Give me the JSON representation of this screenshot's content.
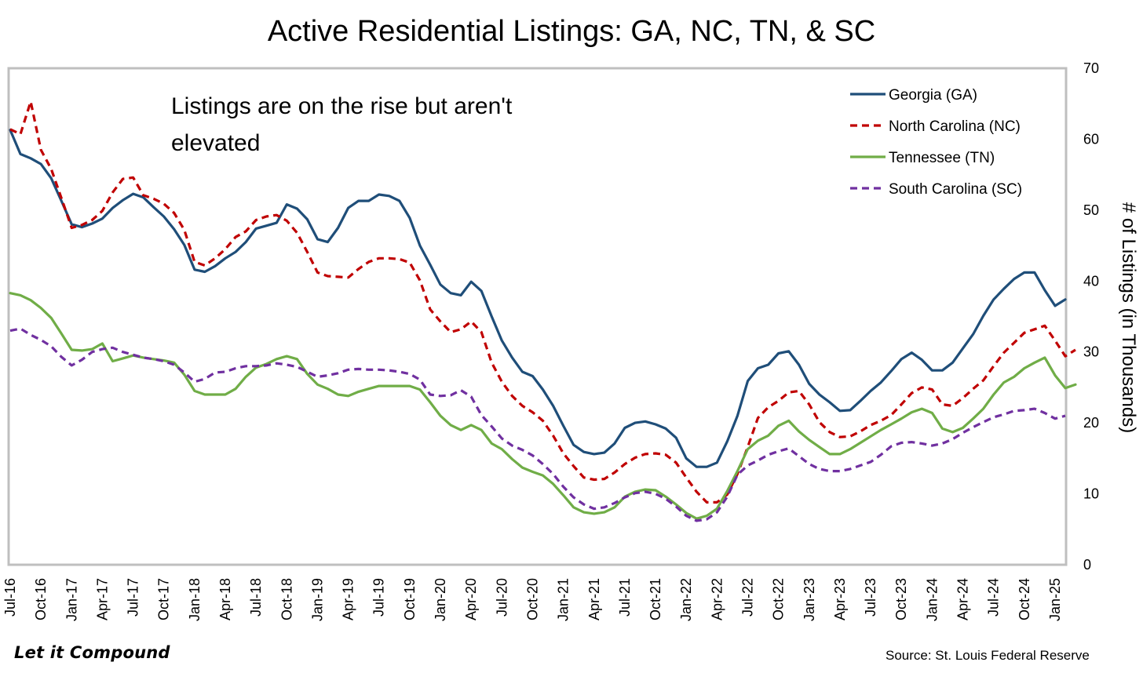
{
  "chart_data": {
    "type": "line",
    "title": "Active Residential Listings: GA, NC, TN, & SC",
    "annotation": "Listings are on the rise but aren't elevated",
    "xlabel": "",
    "ylabel": "# of Listings (in Thousands)",
    "ylim": [
      0,
      70
    ],
    "yticks": [
      0,
      10,
      20,
      30,
      40,
      50,
      60,
      70
    ],
    "grid": false,
    "legend_position": "top-right",
    "x_tick_labels": [
      "Jul-16",
      "Oct-16",
      "Jan-17",
      "Apr-17",
      "Jul-17",
      "Oct-17",
      "Jan-18",
      "Apr-18",
      "Jul-18",
      "Oct-18",
      "Jan-19",
      "Apr-19",
      "Jul-19",
      "Oct-19",
      "Jan-20",
      "Apr-20",
      "Jul-20",
      "Oct-20",
      "Jan-21",
      "Apr-21",
      "Jul-21",
      "Oct-21",
      "Jan-22",
      "Apr-22",
      "Jul-22",
      "Oct-22",
      "Jan-23",
      "Apr-23",
      "Jul-23",
      "Oct-23",
      "Jan-24",
      "Apr-24",
      "Jul-24",
      "Oct-24",
      "Jan-25"
    ],
    "x_start": "Jul-16",
    "x_step_months": 1,
    "series": [
      {
        "name": "Georgia (GA)",
        "color": "#1f4e79",
        "dash": "solid",
        "values": [
          61.3,
          57.9,
          57.3,
          56.5,
          54.5,
          51.3,
          48.0,
          47.6,
          48.1,
          48.8,
          50.3,
          51.4,
          52.3,
          51.8,
          50.4,
          49.1,
          47.3,
          45.1,
          41.6,
          41.3,
          42.1,
          43.2,
          44.1,
          45.5,
          47.4,
          47.8,
          48.2,
          50.8,
          50.2,
          48.7,
          45.9,
          45.5,
          47.5,
          50.3,
          51.3,
          51.3,
          52.2,
          52.0,
          51.3,
          48.9,
          45.0,
          42.3,
          39.5,
          38.3,
          38.0,
          39.9,
          38.6,
          35.0,
          31.6,
          29.2,
          27.2,
          26.6,
          24.7,
          22.4,
          19.6,
          16.9,
          15.9,
          15.6,
          15.8,
          17.1,
          19.3,
          20.0,
          20.2,
          19.8,
          19.2,
          17.9,
          15.0,
          13.8,
          13.8,
          14.4,
          17.4,
          21.0,
          25.9,
          27.7,
          28.2,
          29.8,
          30.1,
          28.2,
          25.5,
          24.0,
          22.9,
          21.7,
          21.8,
          23.1,
          24.5,
          25.7,
          27.3,
          29.0,
          29.9,
          28.9,
          27.4,
          27.4,
          28.5,
          30.5,
          32.5,
          35.1,
          37.4,
          38.9,
          40.3,
          41.2,
          41.2,
          38.7,
          36.5,
          37.4
        ]
      },
      {
        "name": "North Carolina (NC)",
        "color": "#c00000",
        "dash": "dashed",
        "values": [
          61.4,
          60.7,
          65.3,
          58.5,
          55.8,
          51.7,
          47.5,
          47.9,
          48.6,
          49.9,
          52.5,
          54.4,
          54.6,
          52.1,
          51.6,
          50.9,
          49.6,
          47.2,
          42.7,
          42.2,
          43.2,
          44.5,
          46.2,
          47.0,
          48.6,
          49.1,
          49.3,
          48.5,
          46.8,
          44.1,
          41.2,
          40.7,
          40.6,
          40.5,
          41.7,
          42.7,
          43.2,
          43.2,
          43.1,
          42.6,
          40.1,
          36.0,
          34.3,
          32.8,
          33.2,
          34.3,
          32.8,
          28.5,
          25.8,
          23.8,
          22.4,
          21.5,
          20.3,
          18.2,
          15.7,
          13.9,
          12.3,
          12.0,
          12.1,
          13.0,
          14.2,
          15.1,
          15.6,
          15.7,
          15.5,
          14.4,
          12.3,
          10.3,
          8.8,
          8.8,
          9.9,
          12.8,
          16.6,
          20.7,
          22.2,
          23.1,
          24.3,
          24.5,
          22.6,
          20.1,
          18.7,
          18.0,
          18.1,
          18.8,
          19.7,
          20.3,
          21.1,
          22.6,
          24.2,
          25.0,
          24.7,
          22.6,
          22.4,
          23.5,
          24.8,
          26.0,
          28.0,
          29.9,
          31.3,
          32.7,
          33.2,
          33.7,
          31.6,
          29.4,
          30.3
        ]
      },
      {
        "name": "Tennessee (TN)",
        "color": "#70ad47",
        "dash": "solid",
        "values": [
          38.3,
          38.0,
          37.3,
          36.2,
          34.8,
          32.6,
          30.3,
          30.2,
          30.4,
          31.2,
          28.7,
          29.1,
          29.5,
          29.2,
          29.0,
          28.8,
          28.5,
          26.8,
          24.5,
          24.0,
          24.0,
          24.0,
          24.8,
          26.5,
          27.8,
          28.3,
          29.0,
          29.4,
          29.0,
          26.9,
          25.4,
          24.8,
          24.0,
          23.8,
          24.4,
          24.8,
          25.2,
          25.2,
          25.2,
          25.2,
          24.7,
          22.9,
          21.0,
          19.7,
          19.0,
          19.7,
          19.0,
          17.1,
          16.3,
          14.9,
          13.7,
          13.1,
          12.6,
          11.4,
          9.8,
          8.1,
          7.4,
          7.2,
          7.4,
          8.1,
          9.6,
          10.3,
          10.6,
          10.5,
          9.6,
          8.5,
          7.3,
          6.5,
          6.9,
          7.9,
          10.4,
          13.2,
          16.3,
          17.5,
          18.2,
          19.6,
          20.3,
          18.8,
          17.6,
          16.6,
          15.6,
          15.6,
          16.3,
          17.2,
          18.1,
          19.0,
          19.8,
          20.6,
          21.5,
          22.0,
          21.4,
          19.2,
          18.7,
          19.3,
          20.6,
          22.0,
          24.0,
          25.7,
          26.5,
          27.7,
          28.5,
          29.2,
          26.7,
          24.9,
          25.4
        ]
      },
      {
        "name": "South Carolina (SC)",
        "color": "#7030a0",
        "dash": "dashed",
        "values": [
          33.0,
          33.3,
          32.4,
          31.7,
          30.8,
          29.3,
          28.1,
          28.9,
          30.0,
          30.4,
          30.6,
          30.0,
          29.6,
          29.2,
          29.0,
          28.7,
          28.2,
          27.1,
          25.8,
          26.2,
          27.1,
          27.2,
          27.7,
          28.0,
          28.0,
          28.1,
          28.4,
          28.2,
          27.9,
          27.2,
          26.5,
          26.7,
          27.0,
          27.5,
          27.6,
          27.5,
          27.5,
          27.4,
          27.2,
          26.9,
          26.1,
          24.0,
          23.8,
          23.9,
          24.6,
          23.7,
          21.1,
          19.5,
          17.8,
          16.8,
          16.2,
          15.4,
          14.2,
          12.8,
          11.0,
          9.5,
          8.5,
          7.9,
          8.1,
          8.7,
          9.5,
          10.1,
          10.3,
          10.0,
          9.3,
          8.2,
          6.9,
          6.2,
          6.4,
          7.4,
          9.6,
          12.7,
          14.0,
          14.7,
          15.5,
          16.0,
          16.4,
          15.3,
          14.2,
          13.5,
          13.2,
          13.2,
          13.5,
          14.0,
          14.5,
          15.5,
          16.7,
          17.2,
          17.3,
          17.1,
          16.8,
          17.1,
          17.7,
          18.6,
          19.4,
          20.1,
          20.8,
          21.2,
          21.7,
          21.8,
          22.0,
          21.4,
          20.6,
          21.0
        ]
      }
    ]
  },
  "footer": {
    "brand": "Let it Compound",
    "source": "Source: St. Louis Federal Reserve"
  }
}
